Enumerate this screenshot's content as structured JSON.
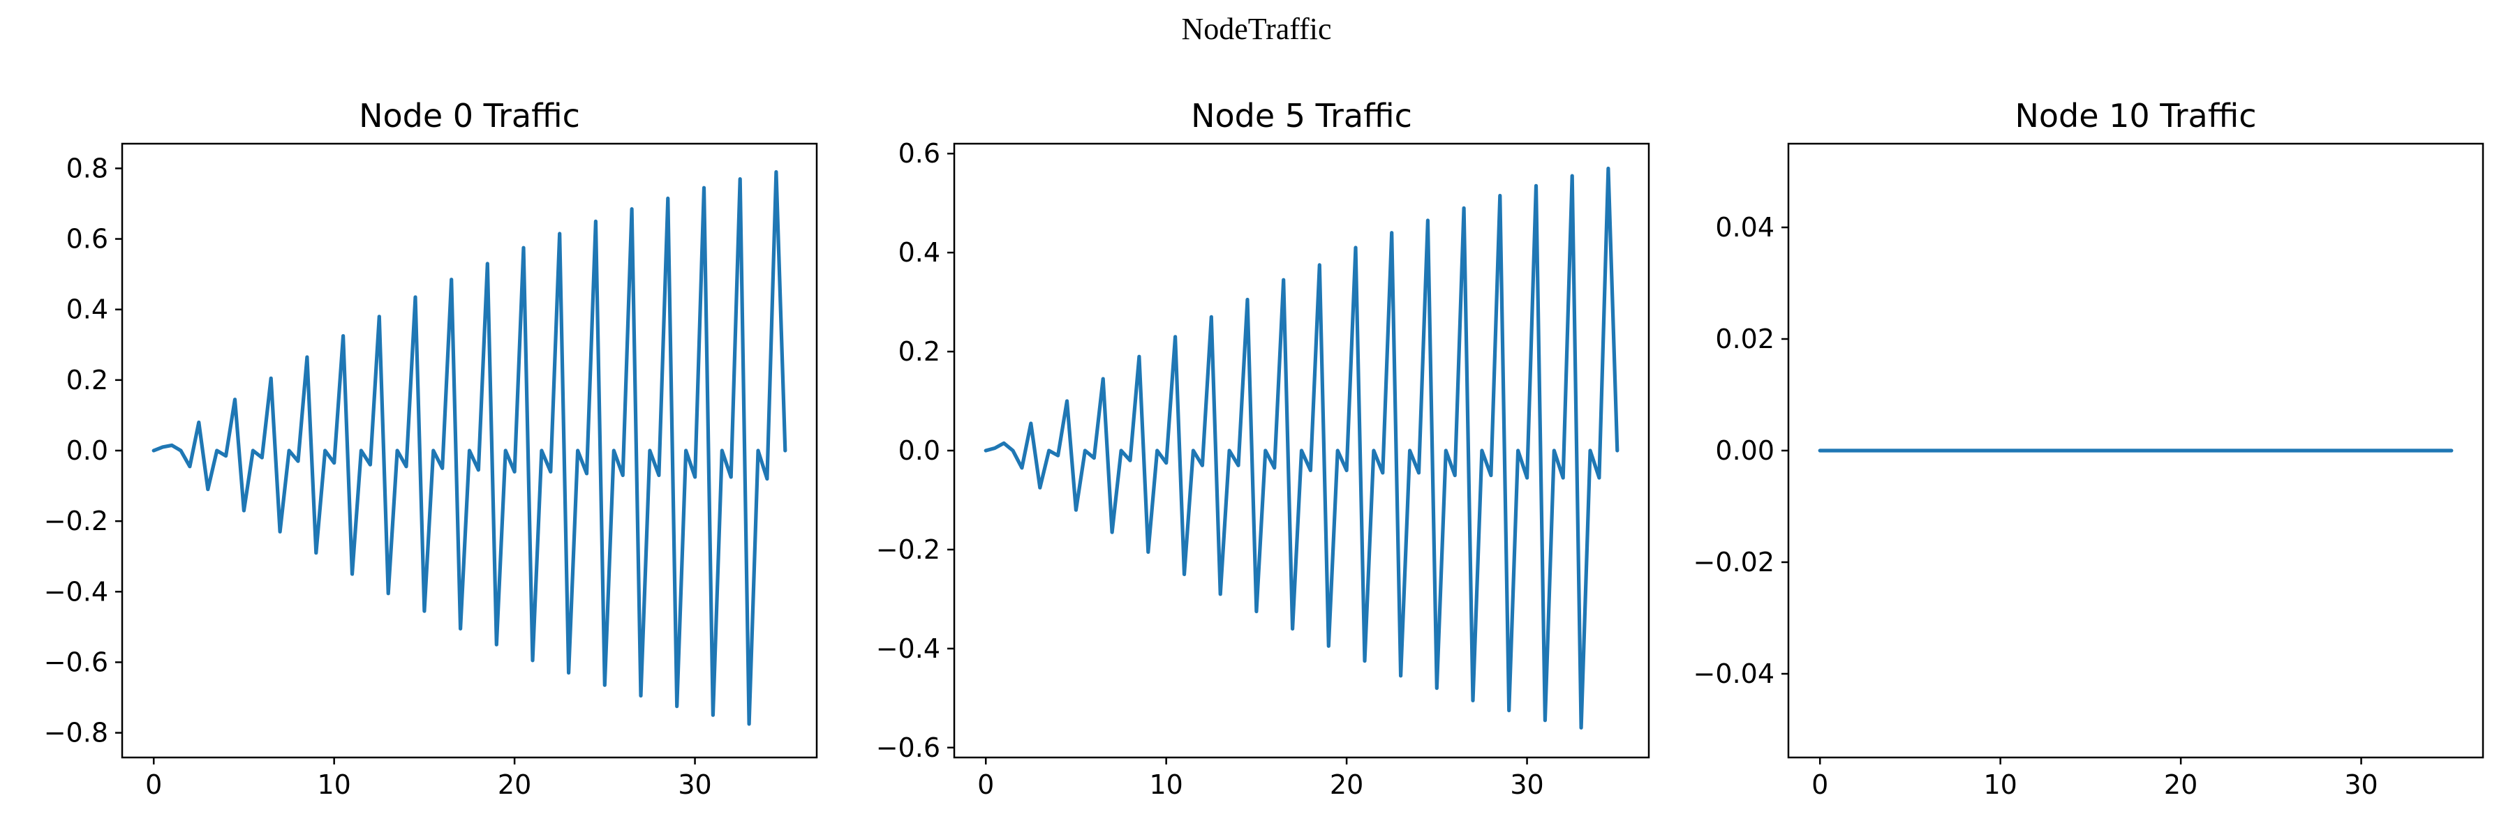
{
  "figure": {
    "suptitle": "NodeTraffic"
  },
  "chart_data": [
    {
      "type": "line",
      "title": "Node 0 Traffic",
      "xlabel": "",
      "ylabel": "",
      "xlim": [
        -1.75,
        36.75
      ],
      "ylim": [
        -0.87,
        0.87
      ],
      "xticks": [
        0,
        10,
        20,
        30
      ],
      "yticks": [
        -0.8,
        -0.6,
        -0.4,
        -0.2,
        0.0,
        0.2,
        0.4,
        0.6,
        0.8
      ],
      "xtick_labels": [
        "0",
        "10",
        "20",
        "30"
      ],
      "ytick_labels": [
        "−0.8",
        "−0.6",
        "−0.4",
        "−0.2",
        "0.0",
        "0.2",
        "0.4",
        "0.6",
        "0.8"
      ],
      "grid": false,
      "series_color": "#1f77b4",
      "series": [
        {
          "x": [
            0,
            0.5,
            1.0,
            1.5,
            2.0,
            2.5,
            3.0,
            3.5,
            4.0,
            4.5,
            5.0,
            5.5,
            6.0,
            6.5,
            7.0,
            7.5,
            8.0,
            8.5,
            9.0,
            9.5,
            10.0,
            10.5,
            11.0,
            11.5,
            12.0,
            12.5,
            13.0,
            13.5,
            14.0,
            14.5,
            15.0,
            15.5,
            16.0,
            16.5,
            17.0,
            17.5,
            18.0,
            18.5,
            19.0,
            19.5,
            20.0,
            20.5,
            21.0,
            21.5,
            22.0,
            22.5,
            23.0,
            23.5,
            24.0,
            24.5,
            25.0,
            25.5,
            26.0,
            26.5,
            27.0,
            27.5,
            28.0,
            28.5,
            29.0,
            29.5,
            30.0,
            30.5,
            31.0,
            31.5,
            32.0,
            32.5,
            33.0,
            33.5,
            34.0,
            34.5,
            35.0
          ],
          "y": [
            0.0,
            0.01,
            0.015,
            0.0,
            -0.045,
            0.08,
            -0.11,
            0.0,
            -0.015,
            0.145,
            -0.17,
            0.0,
            -0.02,
            0.205,
            -0.23,
            0.0,
            -0.03,
            0.265,
            -0.29,
            0.0,
            -0.035,
            0.325,
            -0.35,
            0.0,
            -0.04,
            0.38,
            -0.405,
            0.0,
            -0.045,
            0.435,
            -0.455,
            0.0,
            -0.05,
            0.485,
            -0.505,
            0.0,
            -0.055,
            0.53,
            -0.55,
            0.0,
            -0.06,
            0.575,
            -0.595,
            0.0,
            -0.06,
            0.615,
            -0.63,
            0.0,
            -0.065,
            0.65,
            -0.665,
            0.0,
            -0.07,
            0.685,
            -0.695,
            0.0,
            -0.07,
            0.715,
            -0.725,
            0.0,
            -0.075,
            0.745,
            -0.75,
            0.0,
            -0.075,
            0.77,
            -0.775,
            0.0,
            -0.08,
            0.79,
            0.0
          ]
        }
      ]
    },
    {
      "type": "line",
      "title": "Node 5 Traffic",
      "xlabel": "",
      "ylabel": "",
      "xlim": [
        -1.75,
        36.75
      ],
      "ylim": [
        -0.62,
        0.62
      ],
      "xticks": [
        0,
        10,
        20,
        30
      ],
      "yticks": [
        -0.6,
        -0.4,
        -0.2,
        0.0,
        0.2,
        0.4,
        0.6
      ],
      "xtick_labels": [
        "0",
        "10",
        "20",
        "30"
      ],
      "ytick_labels": [
        "−0.6",
        "−0.4",
        "−0.2",
        "0.0",
        "0.2",
        "0.4",
        "0.6"
      ],
      "grid": false,
      "series_color": "#1f77b4",
      "series": [
        {
          "x": [
            0,
            0.5,
            1.0,
            1.5,
            2.0,
            2.5,
            3.0,
            3.5,
            4.0,
            4.5,
            5.0,
            5.5,
            6.0,
            6.5,
            7.0,
            7.5,
            8.0,
            8.5,
            9.0,
            9.5,
            10.0,
            10.5,
            11.0,
            11.5,
            12.0,
            12.5,
            13.0,
            13.5,
            14.0,
            14.5,
            15.0,
            15.5,
            16.0,
            16.5,
            17.0,
            17.5,
            18.0,
            18.5,
            19.0,
            19.5,
            20.0,
            20.5,
            21.0,
            21.5,
            22.0,
            22.5,
            23.0,
            23.5,
            24.0,
            24.5,
            25.0,
            25.5,
            26.0,
            26.5,
            27.0,
            27.5,
            28.0,
            28.5,
            29.0,
            29.5,
            30.0,
            30.5,
            31.0,
            31.5,
            32.0,
            32.5,
            33.0,
            33.5,
            34.0,
            34.5,
            35.0
          ],
          "y": [
            0.0,
            0.005,
            0.015,
            0.0,
            -0.035,
            0.055,
            -0.075,
            0.0,
            -0.01,
            0.1,
            -0.12,
            0.0,
            -0.015,
            0.145,
            -0.165,
            0.0,
            -0.02,
            0.19,
            -0.205,
            0.0,
            -0.025,
            0.23,
            -0.25,
            0.0,
            -0.03,
            0.27,
            -0.29,
            0.0,
            -0.03,
            0.305,
            -0.325,
            0.0,
            -0.035,
            0.345,
            -0.36,
            0.0,
            -0.04,
            0.375,
            -0.395,
            0.0,
            -0.04,
            0.41,
            -0.425,
            0.0,
            -0.045,
            0.44,
            -0.455,
            0.0,
            -0.045,
            0.465,
            -0.48,
            0.0,
            -0.05,
            0.49,
            -0.505,
            0.0,
            -0.05,
            0.515,
            -0.525,
            0.0,
            -0.055,
            0.535,
            -0.545,
            0.0,
            -0.055,
            0.555,
            -0.56,
            0.0,
            -0.055,
            0.57,
            0.0
          ]
        }
      ]
    },
    {
      "type": "line",
      "title": "Node 10 Traffic",
      "xlabel": "",
      "ylabel": "",
      "xlim": [
        -1.75,
        36.75
      ],
      "ylim": [
        -0.055,
        0.055
      ],
      "xticks": [
        0,
        10,
        20,
        30
      ],
      "yticks": [
        -0.04,
        -0.02,
        0.0,
        0.02,
        0.04
      ],
      "xtick_labels": [
        "0",
        "10",
        "20",
        "30"
      ],
      "ytick_labels": [
        "−0.04",
        "−0.02",
        "0.00",
        "0.02",
        "0.04"
      ],
      "grid": false,
      "series_color": "#1f77b4",
      "series": [
        {
          "x": [
            0,
            35
          ],
          "y": [
            0.0,
            0.0
          ]
        }
      ]
    }
  ]
}
